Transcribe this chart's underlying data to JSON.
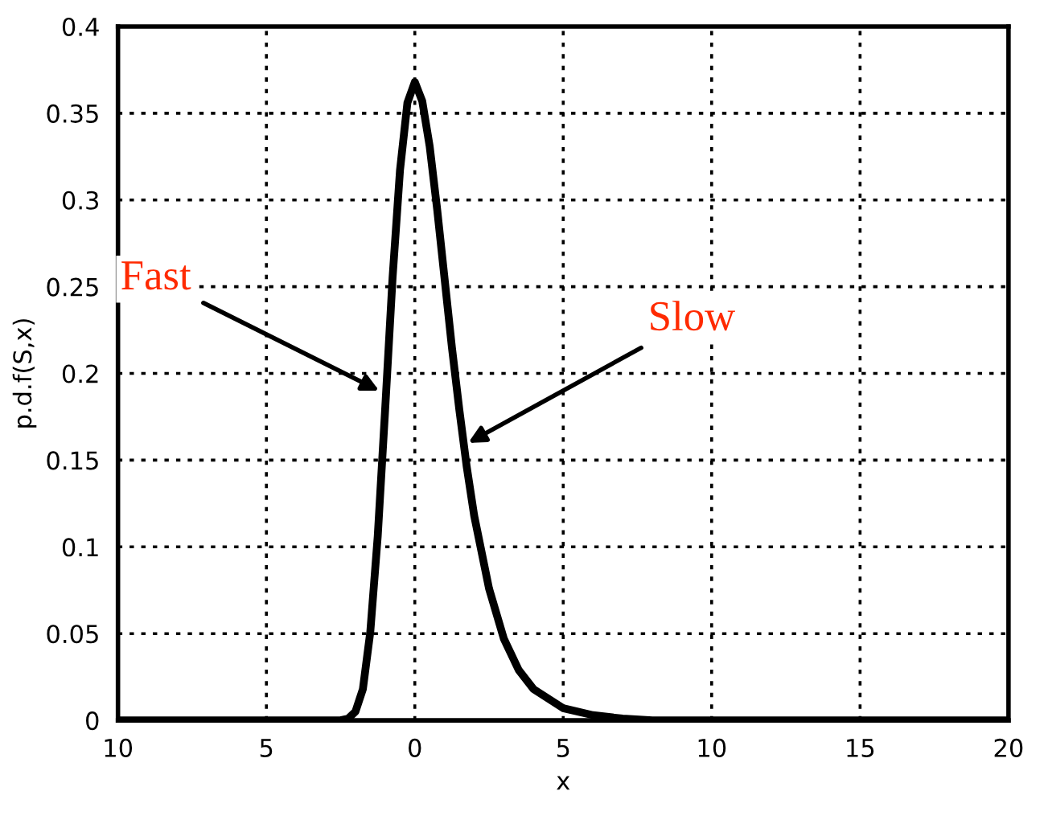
{
  "chart_data": {
    "type": "line",
    "xlabel": "x",
    "ylabel": "p.d.f(S,x)",
    "xlim": [
      -10,
      20
    ],
    "xticks": [
      {
        "value": -10,
        "label": "10"
      },
      {
        "value": -5,
        "label": "5"
      },
      0,
      5,
      10,
      15,
      20
    ],
    "ylim": [
      0,
      0.4
    ],
    "yticks": [
      0,
      0.05,
      0.1,
      0.15,
      0.2,
      0.25,
      0.3,
      0.35,
      0.4
    ],
    "grid": true,
    "marker": "none",
    "line_style": "solid",
    "series": [
      {
        "color": "#000000",
        "x": [
          -10,
          -3,
          -2.5,
          -2.25,
          -2,
          -1.75,
          -1.5,
          -1.25,
          -1,
          -0.75,
          -0.5,
          -0.25,
          0,
          0.25,
          0.5,
          0.75,
          1,
          1.25,
          1.5,
          1.75,
          2,
          2.5,
          3,
          3.5,
          4,
          5,
          6,
          7,
          8,
          20
        ],
        "values": [
          0,
          0,
          0,
          0.001,
          0.005,
          0.018,
          0.051,
          0.106,
          0.179,
          0.255,
          0.317,
          0.356,
          0.368,
          0.357,
          0.331,
          0.295,
          0.255,
          0.215,
          0.179,
          0.146,
          0.118,
          0.076,
          0.047,
          0.029,
          0.018,
          0.007,
          0.003,
          0.001,
          0,
          0
        ]
      }
    ],
    "annotations": [
      {
        "text": "Fast",
        "x": -1.2,
        "y": 0.19
      },
      {
        "text": "Slow",
        "x": 1.8,
        "y": 0.16
      }
    ]
  }
}
